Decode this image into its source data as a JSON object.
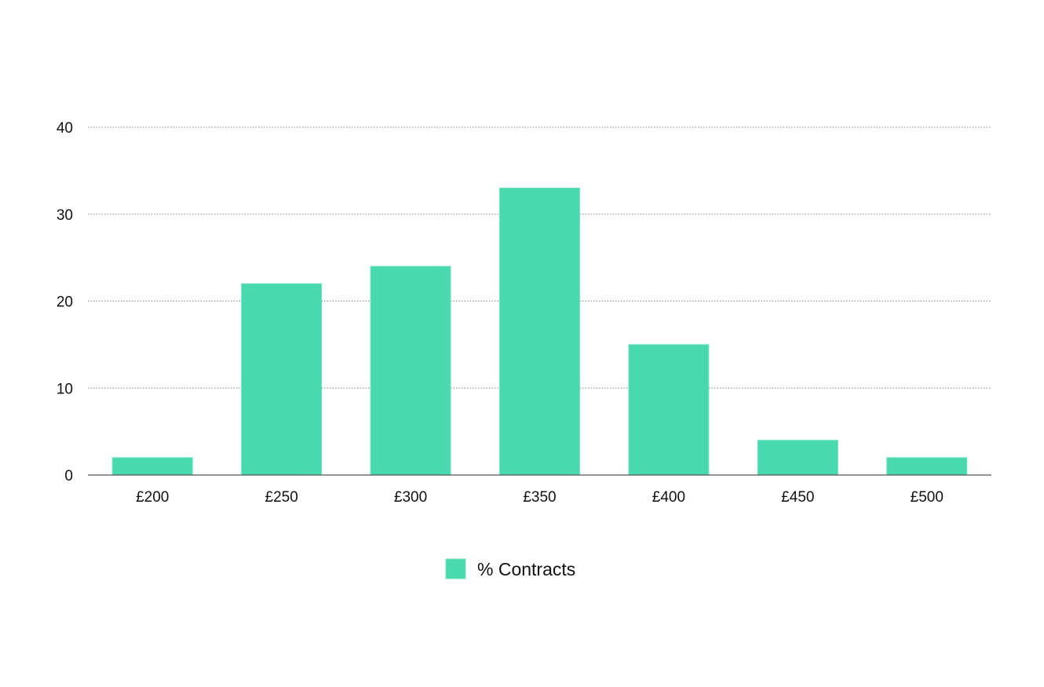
{
  "chart_data": {
    "type": "bar",
    "categories": [
      "£200",
      "£250",
      "£300",
      "£350",
      "£400",
      "£450",
      "£500"
    ],
    "series": [
      {
        "name": "% Contracts",
        "values": [
          2,
          22,
          24,
          33,
          15,
          4,
          2
        ],
        "color": "#48d9ae"
      }
    ],
    "ylim": [
      0,
      40
    ],
    "yticks": [
      0,
      10,
      20,
      30,
      40
    ],
    "grid": true,
    "legend": "bottom-center",
    "title": "",
    "xlabel": "",
    "ylabel": ""
  }
}
